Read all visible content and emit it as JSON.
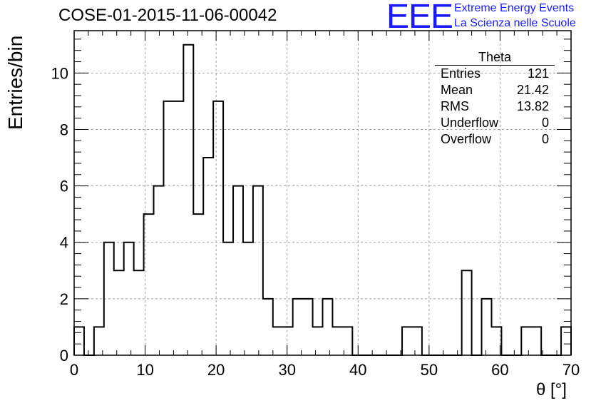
{
  "title": "COSE-01-2015-11-06-00042",
  "logo": {
    "mark": "EEE",
    "line1": "Extreme Energy Events",
    "line2": "La Scienza nelle Scuole",
    "color": "#1a1aff"
  },
  "stats": {
    "name": "Theta",
    "rows": [
      {
        "label": "Entries",
        "value": "121"
      },
      {
        "label": "Mean",
        "value": "21.42"
      },
      {
        "label": "RMS",
        "value": "13.82"
      },
      {
        "label": "Underflow",
        "value": "0"
      },
      {
        "label": "Overflow",
        "value": "0"
      }
    ]
  },
  "chart_data": {
    "type": "bar",
    "histogram_style": "step",
    "xlabel": "θ [°]",
    "ylabel": "Entries/bin",
    "xlim": [
      0,
      70
    ],
    "ylim": [
      0,
      11.5
    ],
    "x_ticks": [
      0,
      10,
      20,
      30,
      40,
      50,
      60,
      70
    ],
    "y_ticks": [
      0,
      2,
      4,
      6,
      8,
      10
    ],
    "grid": true,
    "bin_width": 1.4,
    "bin_low_edges": [
      0,
      1.4,
      2.8,
      4.2,
      5.6,
      7.0,
      8.4,
      9.8,
      11.2,
      12.6,
      14.0,
      15.4,
      16.8,
      18.2,
      19.6,
      21.0,
      22.4,
      23.8,
      25.2,
      26.6,
      28.0,
      29.4,
      30.8,
      32.2,
      33.6,
      35.0,
      36.4,
      37.8,
      39.2,
      40.6,
      42.0,
      43.4,
      44.8,
      46.2,
      47.6,
      49.0,
      50.4,
      51.8,
      53.2,
      54.6,
      56.0,
      57.4,
      58.8,
      60.2,
      61.6,
      63.0,
      64.4,
      65.8,
      67.2,
      68.6
    ],
    "values": [
      1,
      0,
      1,
      4,
      3,
      4,
      3,
      5,
      6,
      9,
      9,
      11,
      5,
      7,
      9,
      4,
      6,
      4,
      6,
      2,
      1,
      1,
      2,
      2,
      1,
      2,
      1,
      1,
      0,
      0,
      0,
      0,
      0,
      1,
      1,
      0,
      0,
      0,
      0,
      3,
      0,
      2,
      1,
      0,
      0,
      1,
      1,
      0,
      0,
      1
    ],
    "line_color": "#000000",
    "grid_color": "#a0a0a0"
  }
}
